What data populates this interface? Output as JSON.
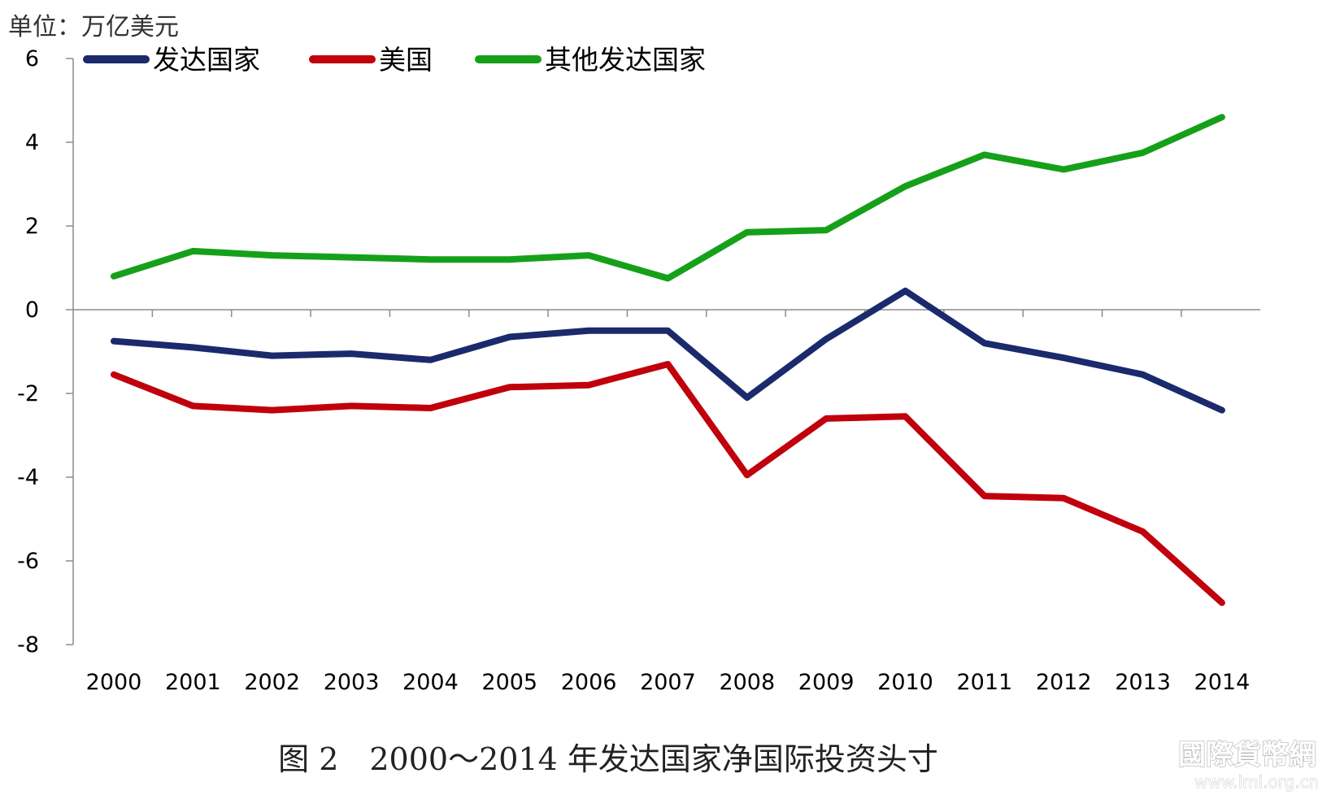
{
  "chart_data": {
    "type": "line",
    "unit_label": "单位：万亿美元",
    "caption": "图 2　2000～2014 年发达国家净国际投资头寸",
    "x": [
      "2000",
      "2001",
      "2002",
      "2003",
      "2004",
      "2005",
      "2006",
      "2007",
      "2008",
      "2009",
      "2010",
      "2011",
      "2012",
      "2013",
      "2014"
    ],
    "ylim": [
      -8,
      6
    ],
    "yticks": [
      "6",
      "4",
      "2",
      "0",
      "-2",
      "-4",
      "-6",
      "-8"
    ],
    "ytick_values": [
      6,
      4,
      2,
      0,
      -2,
      -4,
      -6,
      -8
    ],
    "legend_position": "top",
    "grid": false,
    "series": [
      {
        "name": "发达国家",
        "color": "#1a2a6c",
        "values": [
          -0.75,
          -0.9,
          -1.1,
          -1.05,
          -1.2,
          -0.65,
          -0.5,
          -0.5,
          -2.1,
          -0.7,
          0.45,
          -0.8,
          -1.15,
          -1.55,
          -2.4
        ]
      },
      {
        "name": "美国",
        "color": "#c0000c",
        "values": [
          -1.55,
          -2.3,
          -2.4,
          -2.3,
          -2.35,
          -1.85,
          -1.8,
          -1.3,
          -3.95,
          -2.6,
          -2.55,
          -4.45,
          -4.5,
          -5.3,
          -7.0
        ]
      },
      {
        "name": "其他发达国家",
        "color": "#16a01a",
        "values": [
          0.8,
          1.4,
          1.3,
          1.25,
          1.2,
          1.2,
          1.3,
          0.75,
          1.85,
          1.9,
          2.95,
          3.7,
          3.35,
          3.75,
          4.6
        ]
      }
    ]
  },
  "watermark": {
    "logo_text": "國際貨幣網",
    "url": "www.imi.org.cn"
  }
}
